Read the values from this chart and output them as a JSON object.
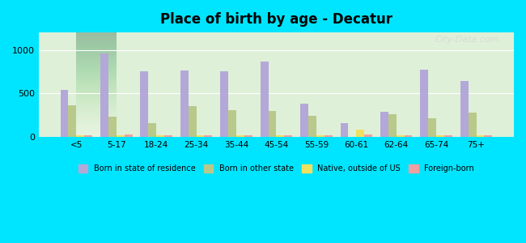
{
  "title": "Place of birth by age - Decatur",
  "categories": [
    "<5",
    "5-17",
    "18-24",
    "25-34",
    "35-44",
    "45-54",
    "55-59",
    "60-61",
    "62-64",
    "65-74",
    "75+"
  ],
  "series": {
    "Born in state of residence": [
      540,
      960,
      750,
      760,
      750,
      870,
      380,
      160,
      290,
      770,
      640
    ],
    "Born in other state": [
      360,
      230,
      155,
      350,
      310,
      295,
      240,
      0,
      255,
      215,
      275
    ],
    "Native, outside of US": [
      15,
      20,
      15,
      15,
      15,
      15,
      15,
      85,
      15,
      15,
      15
    ],
    "Foreign-born": [
      20,
      25,
      20,
      15,
      20,
      20,
      15,
      30,
      15,
      15,
      20
    ]
  },
  "colors": {
    "Born in state of residence": "#b3a8d8",
    "Born in other state": "#b8c98a",
    "Native, outside of US": "#f0e060",
    "Foreign-born": "#f0a0a0"
  },
  "ylim": [
    0,
    1200
  ],
  "yticks": [
    0,
    500,
    1000
  ],
  "background_outer": "#00e5ff",
  "background_inner_top": "#e8f4e8",
  "background_inner_bottom": "#ffffff",
  "bar_width": 0.2,
  "figsize": [
    6.5,
    3.0
  ],
  "dpi": 100,
  "watermark": "City-Data.com"
}
